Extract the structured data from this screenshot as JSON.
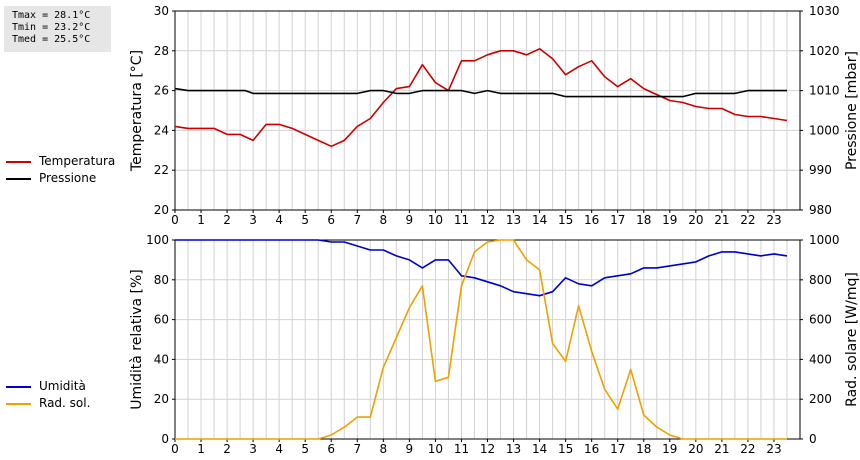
{
  "stats": {
    "tmax": "Tmax = 28.1°C",
    "tmin": "Tmin = 23.2°C",
    "tmed": "Tmed = 25.5°C"
  },
  "legend_top": [
    {
      "label": "Temperatura",
      "color": "#cc0000"
    },
    {
      "label": "Pressione",
      "color": "#000000"
    }
  ],
  "legend_bottom": [
    {
      "label": "Umidità",
      "color": "#0000cc"
    },
    {
      "label": "Rad. sol.",
      "color": "#f0a000"
    }
  ],
  "chart_data": [
    {
      "type": "line",
      "ylabel": "Temperatura [°C]",
      "y2label": "Pressione [mbar]",
      "xlim": [
        0,
        24
      ],
      "ylim": [
        20,
        30
      ],
      "y2lim": [
        980,
        1030
      ],
      "x_ticks": [
        0,
        1,
        2,
        3,
        4,
        5,
        6,
        7,
        8,
        9,
        10,
        11,
        12,
        13,
        14,
        15,
        16,
        17,
        18,
        19,
        20,
        21,
        22,
        23
      ],
      "y_ticks": [
        20,
        22,
        24,
        26,
        28,
        30
      ],
      "y2_ticks": [
        980,
        990,
        1000,
        1010,
        1020,
        1030
      ],
      "grid": true,
      "series": [
        {
          "name": "Temperatura",
          "color": "#cc0000",
          "axis": "left",
          "x": [
            0,
            0.5,
            1,
            1.5,
            2,
            2.5,
            3,
            3.5,
            4,
            4.5,
            5,
            5.5,
            6,
            6.5,
            7,
            7.5,
            8,
            8.5,
            9,
            9.5,
            10,
            10.5,
            11,
            11.5,
            12,
            12.5,
            13,
            13.5,
            14,
            14.5,
            15,
            15.5,
            16,
            16.5,
            17,
            17.5,
            18,
            18.5,
            19,
            19.5,
            20,
            20.5,
            21,
            21.5,
            22,
            22.5,
            23,
            23.5
          ],
          "values": [
            24.2,
            24.1,
            24.1,
            24.1,
            23.8,
            23.8,
            23.5,
            24.3,
            24.3,
            24.1,
            23.8,
            23.5,
            23.2,
            23.5,
            24.2,
            24.6,
            25.4,
            26.1,
            26.2,
            27.3,
            26.4,
            26,
            27.5,
            27.5,
            27.8,
            28,
            28,
            27.8,
            28.1,
            27.6,
            26.8,
            27.2,
            27.5,
            26.7,
            26.2,
            26.6,
            26.1,
            25.8,
            25.5,
            25.4,
            25.2,
            25.1,
            25.1,
            24.8,
            24.7,
            24.7,
            24.6,
            24.5
          ]
        },
        {
          "name": "Pressione",
          "color": "#000000",
          "axis": "right",
          "x": [
            0,
            0.5,
            1,
            2,
            2.7,
            3,
            4,
            5,
            6,
            7,
            7.5,
            8,
            8.5,
            9,
            9.5,
            10,
            11,
            11.5,
            12,
            12.5,
            13,
            14,
            14.5,
            15,
            16,
            17,
            18,
            19,
            19.5,
            20,
            21,
            21.5,
            22,
            23,
            23.5
          ],
          "values": [
            1010.5,
            1010,
            1010,
            1010,
            1010,
            1009.3,
            1009.3,
            1009.3,
            1009.3,
            1009.3,
            1010,
            1010,
            1009.3,
            1009.3,
            1010,
            1010,
            1010,
            1009.3,
            1010,
            1009.3,
            1009.3,
            1009.3,
            1009.3,
            1008.5,
            1008.5,
            1008.5,
            1008.5,
            1008.5,
            1008.5,
            1009.3,
            1009.3,
            1009.3,
            1010,
            1010,
            1010
          ]
        }
      ]
    },
    {
      "type": "line",
      "ylabel": "Umidità relativa [%]",
      "y2label": "Rad. solare [W/mq]",
      "xlim": [
        0,
        24
      ],
      "ylim": [
        0,
        100
      ],
      "y2lim": [
        0,
        1000
      ],
      "x_ticks": [
        0,
        1,
        2,
        3,
        4,
        5,
        6,
        7,
        8,
        9,
        10,
        11,
        12,
        13,
        14,
        15,
        16,
        17,
        18,
        19,
        20,
        21,
        22,
        23
      ],
      "y_ticks": [
        0,
        20,
        40,
        60,
        80,
        100
      ],
      "y2_ticks": [
        0,
        200,
        400,
        600,
        800,
        1000
      ],
      "grid": true,
      "series": [
        {
          "name": "Umidità",
          "color": "#0000cc",
          "axis": "left",
          "x": [
            0,
            1,
            2,
            3,
            4,
            5,
            5.5,
            6,
            6.5,
            7,
            7.5,
            8,
            8.5,
            9,
            9.5,
            10,
            10.5,
            11,
            11.5,
            12,
            12.5,
            13,
            13.5,
            14,
            14.5,
            15,
            15.5,
            16,
            16.5,
            17,
            17.5,
            18,
            18.5,
            19,
            19.5,
            20,
            20.5,
            21,
            21.5,
            22,
            22.5,
            23,
            23.5
          ],
          "values": [
            100,
            100,
            100,
            100,
            100,
            100,
            100,
            99,
            99,
            97,
            95,
            95,
            92,
            90,
            86,
            90,
            90,
            82,
            81,
            79,
            77,
            74,
            73,
            72,
            74,
            81,
            78,
            77,
            81,
            82,
            83,
            86,
            86,
            87,
            88,
            89,
            92,
            94,
            94,
            93,
            92,
            93,
            92
          ]
        },
        {
          "name": "Rad. sol.",
          "color": "#f0a000",
          "axis": "right",
          "x": [
            0,
            1,
            2,
            3,
            4,
            5,
            5.5,
            6,
            6.5,
            7,
            7.5,
            8,
            8.5,
            9,
            9.5,
            10,
            10.5,
            11,
            11.5,
            12,
            12.5,
            13,
            13.5,
            14,
            14.5,
            15,
            15.5,
            16,
            16.5,
            17,
            17.5,
            18,
            18.5,
            19,
            19.5,
            20,
            21,
            22,
            23,
            23.5
          ],
          "values": [
            0,
            0,
            0,
            0,
            0,
            0,
            0,
            20,
            60,
            110,
            110,
            360,
            510,
            660,
            770,
            290,
            310,
            770,
            940,
            990,
            1030,
            1030,
            900,
            850,
            480,
            390,
            670,
            440,
            250,
            150,
            350,
            120,
            60,
            20,
            0,
            0,
            0,
            0,
            0,
            0
          ]
        }
      ]
    }
  ]
}
